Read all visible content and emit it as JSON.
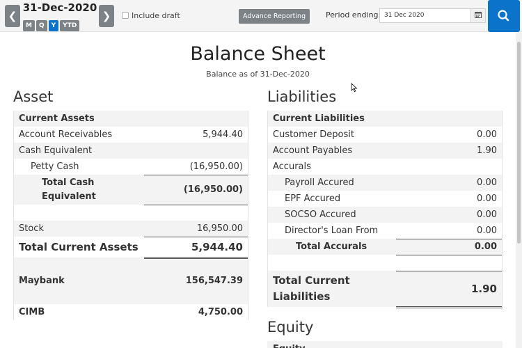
{
  "toolbar": {
    "date": "31-Dec-2020",
    "periods": [
      "M",
      "Q",
      "Y",
      "YTD"
    ],
    "active_period": "Y",
    "include_draft_label": "Include draft",
    "advanced_reporting_label": "Advance Reporting",
    "period_ending_label": "Period ending:",
    "period_ending_value": "31 Dec 2020"
  },
  "report": {
    "title": "Balance Sheet",
    "subtitle": "Balance as of 31-Dec-2020"
  },
  "asset": {
    "title": "Asset",
    "current_assets_header": "Current Assets",
    "rows": {
      "account_receivables": {
        "label": "Account Receivables",
        "value": "5,944.40"
      },
      "cash_equivalent": {
        "label": "Cash Equivalent"
      },
      "petty_cash": {
        "label": "Petty Cash",
        "value": "(16,950.00)"
      },
      "total_cash_equivalent": {
        "label": "Total Cash Equivalent",
        "value": "(16,950.00)"
      },
      "stock": {
        "label": "Stock",
        "value": "16,950.00"
      },
      "total_current_assets": {
        "label": "Total Current Assets",
        "value": "5,944.40"
      },
      "maybank": {
        "label": "Maybank",
        "value": "156,547.39"
      },
      "cimb": {
        "label": "CIMB",
        "value": "4,750.00"
      }
    }
  },
  "liabilities": {
    "title": "Liabilities",
    "current_liabilities_header": "Current Liabilities",
    "rows": {
      "customer_deposit": {
        "label": "Customer Deposit",
        "value": "0.00"
      },
      "account_payables": {
        "label": "Account Payables",
        "value": "1.90"
      },
      "accurals": {
        "label": "Accurals"
      },
      "payroll_accured": {
        "label": "Payroll Accured",
        "value": "0.00"
      },
      "epf_accured": {
        "label": "EPF Accured",
        "value": "0.00"
      },
      "socso_accured": {
        "label": "SOCSO Accured",
        "value": "0.00"
      },
      "directors_loan_from": {
        "label": "Director's Loan From",
        "value": "0.00"
      },
      "total_accurals": {
        "label": "Total Accurals",
        "value": "0.00"
      },
      "total_current_liabilities": {
        "label": "Total Current Liabilities",
        "value": "1.90"
      }
    }
  },
  "equity": {
    "title": "Equity",
    "first_row_label": "Equity"
  }
}
